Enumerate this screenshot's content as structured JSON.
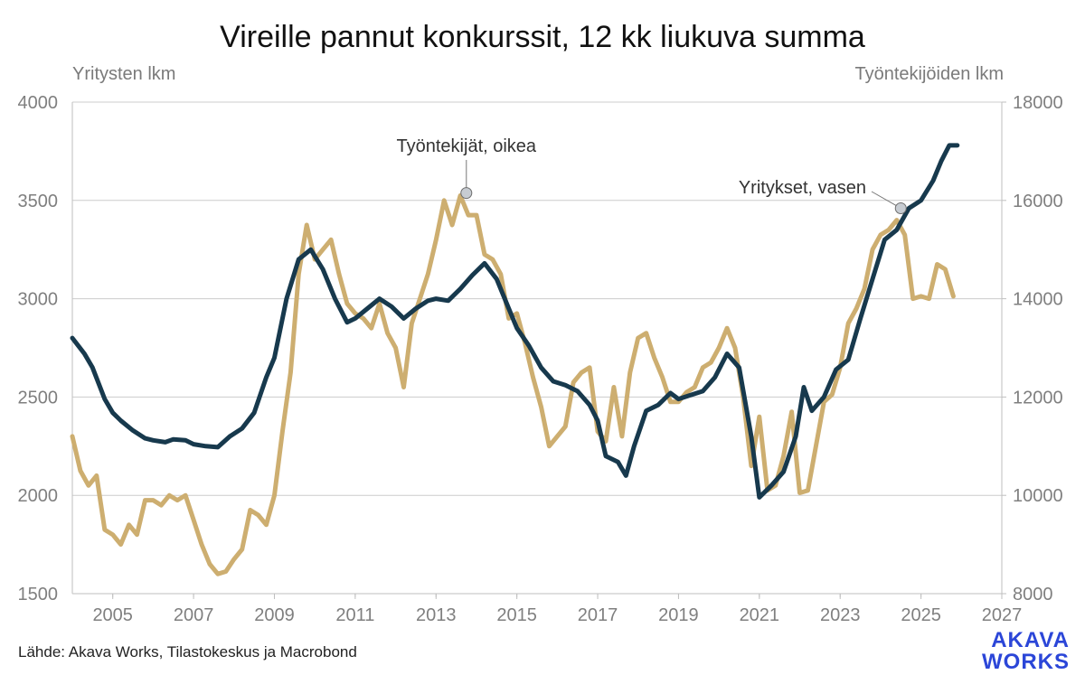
{
  "chart_data": {
    "type": "line",
    "title": "Vireille pannut konkurssit, 12 kk liukuva summa",
    "left_axis_title": "Yritysten lkm",
    "right_axis_title": "Työntekijöiden lkm",
    "xlim": [
      2004,
      2027
    ],
    "ylim_left": [
      1500,
      4000
    ],
    "ylim_right": [
      8000,
      18000
    ],
    "x_ticks": [
      2005,
      2007,
      2009,
      2011,
      2013,
      2015,
      2017,
      2019,
      2021,
      2023,
      2025,
      2027
    ],
    "y_ticks_left": [
      1500,
      2000,
      2500,
      3000,
      3500,
      4000
    ],
    "y_ticks_right": [
      8000,
      10000,
      12000,
      14000,
      16000,
      18000
    ],
    "grid": "horizontal",
    "series": [
      {
        "name": "Yritykset, vasen",
        "axis": "left",
        "color": "#17394d",
        "x": [
          2004.0,
          2004.3,
          2004.5,
          2004.8,
          2005.0,
          2005.2,
          2005.5,
          2005.8,
          2006.0,
          2006.3,
          2006.5,
          2006.8,
          2007.0,
          2007.3,
          2007.6,
          2007.9,
          2008.2,
          2008.5,
          2008.8,
          2009.0,
          2009.3,
          2009.6,
          2009.9,
          2010.2,
          2010.5,
          2010.8,
          2011.0,
          2011.3,
          2011.6,
          2011.9,
          2012.2,
          2012.5,
          2012.8,
          2013.0,
          2013.3,
          2013.6,
          2013.9,
          2014.2,
          2014.5,
          2014.8,
          2015.0,
          2015.3,
          2015.6,
          2015.9,
          2016.2,
          2016.5,
          2016.8,
          2017.0,
          2017.2,
          2017.5,
          2017.7,
          2017.9,
          2018.2,
          2018.5,
          2018.8,
          2019.0,
          2019.3,
          2019.6,
          2019.9,
          2020.2,
          2020.5,
          2020.8,
          2021.0,
          2021.3,
          2021.6,
          2021.9,
          2022.1,
          2022.3,
          2022.6,
          2022.9,
          2023.2,
          2023.5,
          2023.8,
          2024.1,
          2024.4,
          2024.7,
          2025.0,
          2025.3,
          2025.5,
          2025.7,
          2025.9
        ],
        "values": [
          2800,
          2720,
          2650,
          2490,
          2420,
          2380,
          2330,
          2290,
          2280,
          2270,
          2285,
          2280,
          2260,
          2250,
          2245,
          2300,
          2340,
          2420,
          2600,
          2700,
          3000,
          3200,
          3250,
          3150,
          3000,
          2880,
          2900,
          2950,
          3000,
          2960,
          2900,
          2950,
          2990,
          3000,
          2990,
          3050,
          3120,
          3180,
          3100,
          2950,
          2850,
          2760,
          2650,
          2580,
          2560,
          2530,
          2460,
          2380,
          2200,
          2170,
          2100,
          2250,
          2430,
          2460,
          2520,
          2490,
          2510,
          2530,
          2600,
          2720,
          2650,
          2300,
          1990,
          2050,
          2120,
          2300,
          2550,
          2430,
          2500,
          2640,
          2690,
          2900,
          3100,
          3300,
          3350,
          3460,
          3500,
          3600,
          3700,
          3780,
          3780
        ]
      },
      {
        "name": "Työntekijät, oikea",
        "axis": "right",
        "color": "#cdae70",
        "x": [
          2004.0,
          2004.2,
          2004.4,
          2004.6,
          2004.8,
          2005.0,
          2005.2,
          2005.4,
          2005.6,
          2005.8,
          2006.0,
          2006.2,
          2006.4,
          2006.6,
          2006.8,
          2007.0,
          2007.2,
          2007.4,
          2007.6,
          2007.8,
          2008.0,
          2008.2,
          2008.4,
          2008.6,
          2008.8,
          2009.0,
          2009.2,
          2009.4,
          2009.6,
          2009.8,
          2010.0,
          2010.2,
          2010.4,
          2010.6,
          2010.8,
          2011.0,
          2011.2,
          2011.4,
          2011.6,
          2011.8,
          2012.0,
          2012.2,
          2012.4,
          2012.6,
          2012.8,
          2013.0,
          2013.2,
          2013.4,
          2013.6,
          2013.8,
          2014.0,
          2014.2,
          2014.4,
          2014.6,
          2014.8,
          2015.0,
          2015.2,
          2015.4,
          2015.6,
          2015.8,
          2016.0,
          2016.2,
          2016.4,
          2016.6,
          2016.8,
          2017.0,
          2017.2,
          2017.4,
          2017.6,
          2017.8,
          2018.0,
          2018.2,
          2018.4,
          2018.6,
          2018.8,
          2019.0,
          2019.2,
          2019.4,
          2019.6,
          2019.8,
          2020.0,
          2020.2,
          2020.4,
          2020.6,
          2020.8,
          2021.0,
          2021.2,
          2021.4,
          2021.6,
          2021.8,
          2022.0,
          2022.2,
          2022.4,
          2022.6,
          2022.8,
          2023.0,
          2023.2,
          2023.4,
          2023.6,
          2023.8,
          2024.0,
          2024.2,
          2024.4,
          2024.6,
          2024.8,
          2025.0,
          2025.2,
          2025.4,
          2025.6,
          2025.8
        ],
        "values": [
          11200,
          10500,
          10200,
          10400,
          9300,
          9200,
          9000,
          9400,
          9200,
          9900,
          9900,
          9800,
          10000,
          9900,
          10000,
          9500,
          9000,
          8600,
          8400,
          8450,
          8700,
          8900,
          9700,
          9600,
          9400,
          10000,
          11300,
          12500,
          14500,
          15500,
          14800,
          15000,
          15200,
          14500,
          13900,
          13700,
          13600,
          13400,
          13900,
          13300,
          13000,
          12200,
          13500,
          14000,
          14500,
          15200,
          16000,
          15500,
          16100,
          15700,
          15700,
          14900,
          14800,
          14500,
          13600,
          13700,
          13100,
          12400,
          11800,
          11000,
          11200,
          11400,
          12300,
          12500,
          12600,
          11300,
          11100,
          12200,
          11200,
          12500,
          13200,
          13300,
          12800,
          12400,
          11900,
          11900,
          12100,
          12200,
          12600,
          12700,
          13000,
          13400,
          13000,
          12000,
          10600,
          11600,
          10100,
          10200,
          10800,
          11700,
          10050,
          10100,
          11000,
          11900,
          12050,
          12600,
          13500,
          13800,
          14200,
          15000,
          15300,
          15400,
          15600,
          15300,
          14000,
          14050,
          14000,
          14700,
          14600,
          14050
        ]
      }
    ],
    "annotations": [
      {
        "text": "Työntekijät, oikea",
        "series": "Työntekijät, oikea",
        "x": 2013.75,
        "y": 16150
      },
      {
        "text": "Yritykset, vasen",
        "series": "Yritykset, vasen",
        "x": 2024.5,
        "y": 3460
      }
    ],
    "source": "Lähde: Akava Works, Tilastokeskus ja Macrobond",
    "logo": {
      "line1": "AKAVA",
      "line2": "WORKS",
      "color": "#2b46d8"
    }
  }
}
